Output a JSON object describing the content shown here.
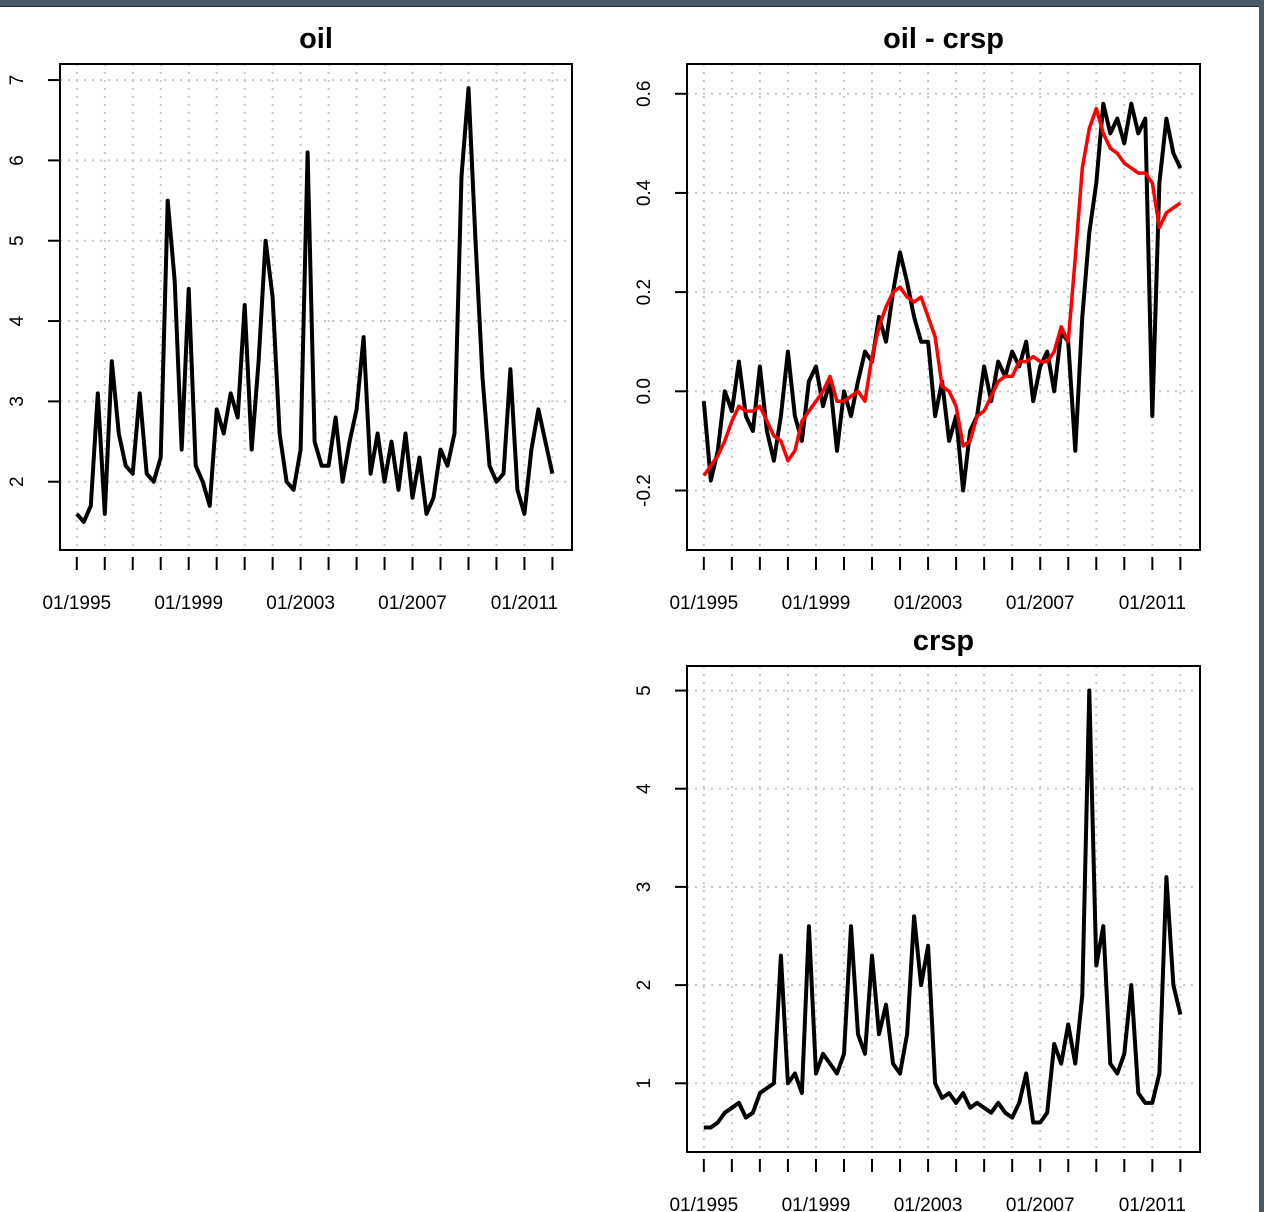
{
  "chart_data": [
    {
      "type": "line",
      "title": "oil",
      "xlabel": "",
      "ylabel": "",
      "x_start": 1995.0,
      "x_step": 0.25,
      "xlim": [
        1994.4,
        2012.7
      ],
      "ylim": [
        1.15,
        7.2
      ],
      "xtick_labels": [
        "01/1995",
        "01/1999",
        "01/2003",
        "01/2007",
        "01/2011"
      ],
      "xtick_label_years": [
        1995,
        1999,
        2003,
        2007,
        2011
      ],
      "yticks": [
        2,
        3,
        4,
        5,
        6,
        7
      ],
      "ytick_labels": [
        "2",
        "3",
        "4",
        "5",
        "6",
        "7"
      ],
      "grid": true,
      "series": [
        {
          "name": "oil",
          "color": "#000000",
          "values": [
            1.6,
            1.5,
            1.7,
            3.1,
            1.6,
            3.5,
            2.6,
            2.2,
            2.1,
            3.1,
            2.1,
            2.0,
            2.3,
            5.5,
            4.5,
            2.4,
            4.4,
            2.2,
            2.0,
            1.7,
            2.9,
            2.6,
            3.1,
            2.8,
            4.2,
            2.4,
            3.5,
            5.0,
            4.3,
            2.6,
            2.0,
            1.9,
            2.4,
            6.1,
            2.5,
            2.2,
            2.2,
            2.8,
            2.0,
            2.5,
            2.9,
            3.8,
            2.1,
            2.6,
            2.0,
            2.5,
            1.9,
            2.6,
            1.8,
            2.3,
            1.6,
            1.8,
            2.4,
            2.2,
            2.6,
            5.8,
            6.9,
            5.0,
            3.3,
            2.2,
            2.0,
            2.1,
            3.4,
            1.9,
            1.6,
            2.4,
            2.9,
            2.5,
            2.1
          ]
        }
      ]
    },
    {
      "type": "line",
      "title": "oil - crsp",
      "xlabel": "",
      "ylabel": "",
      "x_start": 1995.0,
      "x_step": 0.25,
      "xlim": [
        1994.4,
        2012.7
      ],
      "ylim": [
        -0.32,
        0.66
      ],
      "xtick_labels": [
        "01/1995",
        "01/1999",
        "01/2003",
        "01/2007",
        "01/2011"
      ],
      "xtick_label_years": [
        1995,
        1999,
        2003,
        2007,
        2011
      ],
      "yticks": [
        -0.2,
        0.0,
        0.2,
        0.4,
        0.6
      ],
      "ytick_labels": [
        "-0.2",
        "0.0",
        "0.2",
        "0.4",
        "0.6"
      ],
      "grid": true,
      "series": [
        {
          "name": "oil - crsp",
          "color": "#000000",
          "values": [
            -0.02,
            -0.18,
            -0.12,
            0.0,
            -0.04,
            0.06,
            -0.05,
            -0.08,
            0.05,
            -0.08,
            -0.14,
            -0.05,
            0.08,
            -0.05,
            -0.1,
            0.02,
            0.05,
            -0.03,
            0.02,
            -0.12,
            0.0,
            -0.05,
            0.02,
            0.08,
            0.06,
            0.15,
            0.1,
            0.2,
            0.28,
            0.22,
            0.15,
            0.1,
            0.1,
            -0.05,
            0.02,
            -0.1,
            -0.05,
            -0.2,
            -0.08,
            -0.05,
            0.05,
            -0.02,
            0.06,
            0.03,
            0.08,
            0.05,
            0.1,
            -0.02,
            0.05,
            0.08,
            0.0,
            0.12,
            0.1,
            -0.12,
            0.15,
            0.32,
            0.42,
            0.58,
            0.52,
            0.55,
            0.5,
            0.58,
            0.52,
            0.55,
            -0.05,
            0.42,
            0.55,
            0.48,
            0.45
          ]
        },
        {
          "name": "smoothed",
          "color": "#ff0000",
          "values": [
            -0.17,
            -0.15,
            -0.13,
            -0.1,
            -0.06,
            -0.03,
            -0.04,
            -0.04,
            -0.03,
            -0.06,
            -0.09,
            -0.1,
            -0.14,
            -0.12,
            -0.06,
            -0.04,
            -0.02,
            0.0,
            0.03,
            -0.02,
            -0.02,
            -0.01,
            0.0,
            -0.02,
            0.07,
            0.13,
            0.17,
            0.2,
            0.21,
            0.19,
            0.18,
            0.19,
            0.15,
            0.11,
            0.01,
            0.0,
            -0.03,
            -0.11,
            -0.1,
            -0.05,
            -0.04,
            -0.01,
            0.02,
            0.03,
            0.03,
            0.06,
            0.06,
            0.07,
            0.06,
            0.06,
            0.08,
            0.13,
            0.1,
            0.27,
            0.45,
            0.53,
            0.57,
            0.52,
            0.49,
            0.48,
            0.46,
            0.45,
            0.44,
            0.44,
            0.42,
            0.33,
            0.36,
            0.37,
            0.38
          ]
        }
      ]
    },
    {
      "type": "line",
      "title": "crsp",
      "xlabel": "",
      "ylabel": "",
      "x_start": 1995.0,
      "x_step": 0.25,
      "xlim": [
        1994.4,
        2012.7
      ],
      "ylim": [
        0.3,
        5.25
      ],
      "xtick_labels": [
        "01/1995",
        "01/1999",
        "01/2003",
        "01/2007",
        "01/2011"
      ],
      "xtick_label_years": [
        1995,
        1999,
        2003,
        2007,
        2011
      ],
      "yticks": [
        1,
        2,
        3,
        4,
        5
      ],
      "ytick_labels": [
        "1",
        "2",
        "3",
        "4",
        "5"
      ],
      "grid": true,
      "series": [
        {
          "name": "crsp",
          "color": "#000000",
          "values": [
            0.55,
            0.55,
            0.6,
            0.7,
            0.75,
            0.8,
            0.65,
            0.7,
            0.9,
            0.95,
            1.0,
            2.3,
            1.0,
            1.1,
            0.9,
            2.6,
            1.1,
            1.3,
            1.2,
            1.1,
            1.3,
            2.6,
            1.5,
            1.3,
            2.3,
            1.5,
            1.8,
            1.2,
            1.1,
            1.5,
            2.7,
            2.0,
            2.4,
            1.0,
            0.85,
            0.9,
            0.8,
            0.9,
            0.75,
            0.8,
            0.75,
            0.7,
            0.8,
            0.7,
            0.65,
            0.8,
            1.1,
            0.6,
            0.6,
            0.7,
            1.4,
            1.2,
            1.6,
            1.2,
            1.9,
            5.0,
            2.2,
            2.6,
            1.2,
            1.1,
            1.3,
            2.0,
            0.9,
            0.8,
            0.8,
            1.1,
            3.1,
            2.0,
            1.7
          ]
        }
      ]
    }
  ]
}
